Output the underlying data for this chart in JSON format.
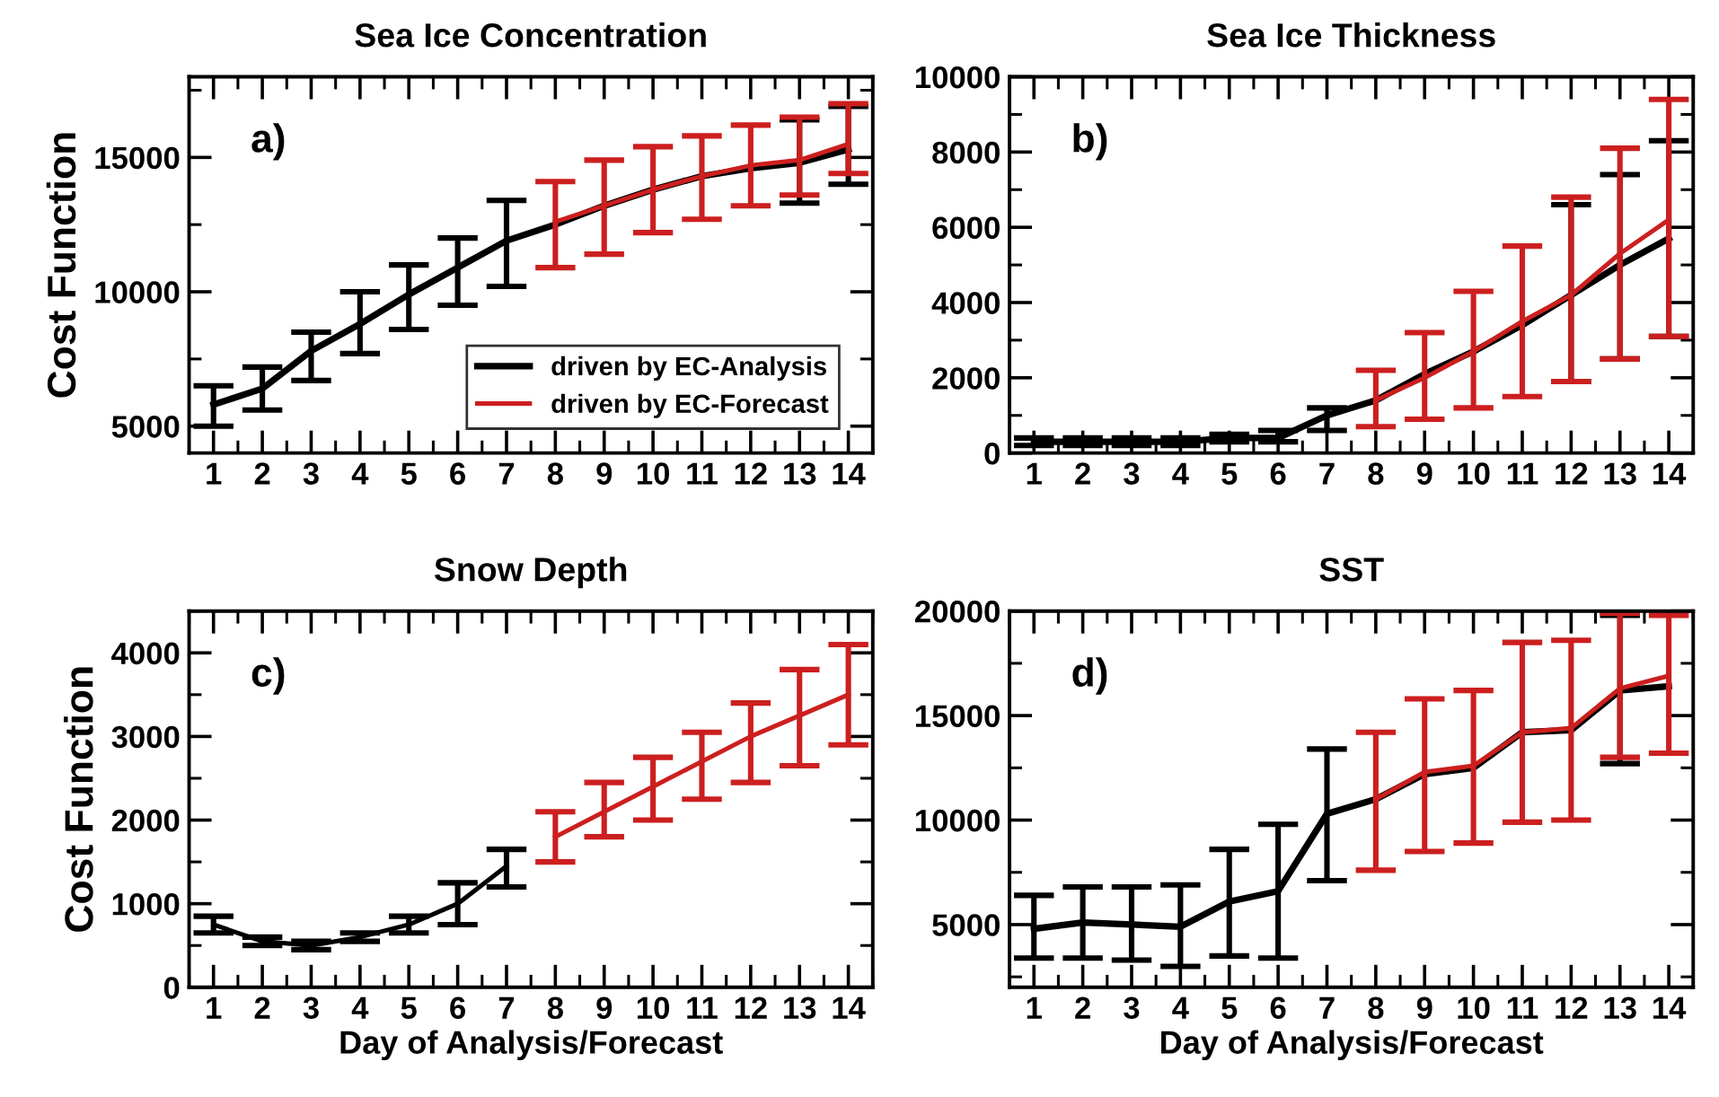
{
  "chart_data": [
    {
      "type": "line",
      "title": "Sea Ice Concentration",
      "ylabel": "Cost Function",
      "annotations": [
        "a)"
      ],
      "legend": "bottom right",
      "marker": "none",
      "line_style": "solid",
      "grid": false,
      "x": [
        1,
        2,
        3,
        4,
        5,
        6,
        7,
        8,
        9,
        10,
        11,
        12,
        13,
        14
      ],
      "xlim": [
        0.5,
        14.5
      ],
      "xticks": [
        1,
        2,
        3,
        4,
        5,
        6,
        7,
        8,
        9,
        10,
        11,
        12,
        13,
        14
      ],
      "ylim": [
        4000,
        18000
      ],
      "yticks": [
        5000,
        10000,
        15000
      ],
      "series": [
        {
          "name": "driven by EC-Analysis",
          "color": "#000000",
          "values": [
            5800,
            6400,
            7800,
            8800,
            9900,
            10900,
            11900,
            12500,
            13200,
            13800,
            14300,
            14600,
            14800,
            15300
          ],
          "errors": [
            [
              5000,
              6500
            ],
            [
              5600,
              7200
            ],
            [
              6700,
              8500
            ],
            [
              7700,
              10000
            ],
            [
              8600,
              11000
            ],
            [
              9500,
              12000
            ],
            [
              10200,
              13400
            ],
            null,
            null,
            null,
            null,
            null,
            [
              13300,
              16400
            ],
            [
              14000,
              16900
            ]
          ]
        },
        {
          "name": "driven by EC-Forecast",
          "color": "#cc1f1f",
          "x": [
            8,
            9,
            10,
            11,
            12,
            13,
            14
          ],
          "values": [
            12600,
            13200,
            13800,
            14300,
            14700,
            14900,
            15500
          ],
          "errors": [
            [
              10900,
              14100
            ],
            [
              11400,
              14900
            ],
            [
              12200,
              15400
            ],
            [
              12700,
              15800
            ],
            [
              13200,
              16200
            ],
            [
              13600,
              16500
            ],
            [
              14400,
              17000
            ]
          ]
        }
      ]
    },
    {
      "type": "line",
      "title": "Sea Ice Thickness",
      "annotations": [
        "b)"
      ],
      "marker": "none",
      "line_style": "solid",
      "grid": false,
      "x": [
        1,
        2,
        3,
        4,
        5,
        6,
        7,
        8,
        9,
        10,
        11,
        12,
        13,
        14
      ],
      "xlim": [
        0.5,
        14.5
      ],
      "xticks": [
        1,
        2,
        3,
        4,
        5,
        6,
        7,
        8,
        9,
        10,
        11,
        12,
        13,
        14
      ],
      "ylim": [
        0,
        10000
      ],
      "yticks": [
        0,
        2000,
        4000,
        6000,
        8000,
        10000
      ],
      "series": [
        {
          "color": "#000000",
          "values": [
            300,
            300,
            300,
            300,
            400,
            400,
            1000,
            1400,
            2100,
            2700,
            3400,
            4200,
            5000,
            5700
          ],
          "errors": [
            [
              200,
              400
            ],
            [
              200,
              400
            ],
            [
              200,
              400
            ],
            [
              200,
              400
            ],
            [
              300,
              500
            ],
            [
              300,
              600
            ],
            [
              600,
              1200
            ],
            null,
            null,
            null,
            null,
            [
              1900,
              6600
            ],
            [
              2500,
              7400
            ],
            [
              3100,
              8300
            ]
          ]
        },
        {
          "color": "#cc1f1f",
          "x": [
            8,
            9,
            10,
            11,
            12,
            13,
            14
          ],
          "values": [
            1400,
            2000,
            2700,
            3500,
            4200,
            5300,
            6200
          ],
          "errors": [
            [
              700,
              2200
            ],
            [
              900,
              3200
            ],
            [
              1200,
              4300
            ],
            [
              1500,
              5500
            ],
            [
              1900,
              6800
            ],
            [
              2500,
              8100
            ],
            [
              3100,
              9400
            ]
          ]
        }
      ]
    },
    {
      "type": "line",
      "title": "Snow Depth",
      "ylabel": "Cost Function",
      "xlabel": "Day of Analysis/Forecast",
      "annotations": [
        "c)"
      ],
      "marker": "none",
      "line_style": "solid",
      "grid": false,
      "xlim": [
        0.5,
        14.5
      ],
      "xticks": [
        1,
        2,
        3,
        4,
        5,
        6,
        7,
        8,
        9,
        10,
        11,
        12,
        13,
        14
      ],
      "ylim": [
        0,
        4500
      ],
      "yticks": [
        0,
        1000,
        2000,
        3000,
        4000
      ],
      "series": [
        {
          "color": "#000000",
          "x": [
            1,
            2,
            3,
            4,
            5,
            6,
            7
          ],
          "values": [
            750,
            550,
            500,
            600,
            750,
            1000,
            1450
          ],
          "errors": [
            [
              650,
              850
            ],
            [
              500,
              600
            ],
            [
              450,
              550
            ],
            [
              550,
              650
            ],
            [
              650,
              850
            ],
            [
              750,
              1250
            ],
            [
              1200,
              1650
            ]
          ]
        },
        {
          "color": "#cc1f1f",
          "x": [
            8,
            9,
            10,
            11,
            12,
            13,
            14
          ],
          "values": [
            1800,
            2100,
            2400,
            2700,
            3000,
            3250,
            3500
          ],
          "errors": [
            [
              1500,
              2100
            ],
            [
              1800,
              2450
            ],
            [
              2000,
              2750
            ],
            [
              2250,
              3050
            ],
            [
              2450,
              3400
            ],
            [
              2650,
              3800
            ],
            [
              2900,
              4100
            ]
          ]
        }
      ]
    },
    {
      "type": "line",
      "title": "SST",
      "xlabel": "Day of Analysis/Forecast",
      "annotations": [
        "d)"
      ],
      "marker": "none",
      "line_style": "solid",
      "grid": false,
      "x": [
        1,
        2,
        3,
        4,
        5,
        6,
        7,
        8,
        9,
        10,
        11,
        12,
        13,
        14
      ],
      "xlim": [
        0.5,
        14.5
      ],
      "xticks": [
        1,
        2,
        3,
        4,
        5,
        6,
        7,
        8,
        9,
        10,
        11,
        12,
        13,
        14
      ],
      "ylim": [
        2000,
        20000
      ],
      "yticks": [
        5000,
        10000,
        15000,
        20000
      ],
      "series": [
        {
          "color": "#000000",
          "values": [
            4800,
            5100,
            5000,
            4900,
            6100,
            6600,
            10300,
            11000,
            12200,
            12500,
            14200,
            14300,
            16200,
            16400
          ],
          "errors": [
            [
              3400,
              6400
            ],
            [
              3400,
              6800
            ],
            [
              3300,
              6800
            ],
            [
              3000,
              6900
            ],
            [
              3500,
              8600
            ],
            [
              3400,
              9800
            ],
            [
              7100,
              13400
            ],
            null,
            null,
            null,
            null,
            null,
            [
              12700,
              19800
            ],
            null
          ]
        },
        {
          "color": "#cc1f1f",
          "x": [
            8,
            9,
            10,
            11,
            12,
            13,
            14
          ],
          "values": [
            11000,
            12300,
            12600,
            14200,
            14400,
            16300,
            16900
          ],
          "errors": [
            [
              7600,
              14200
            ],
            [
              8500,
              15800
            ],
            [
              8900,
              16200
            ],
            [
              9900,
              18500
            ],
            [
              10000,
              18600
            ],
            [
              13000,
              19900
            ],
            [
              13200,
              19800
            ]
          ]
        }
      ]
    }
  ]
}
